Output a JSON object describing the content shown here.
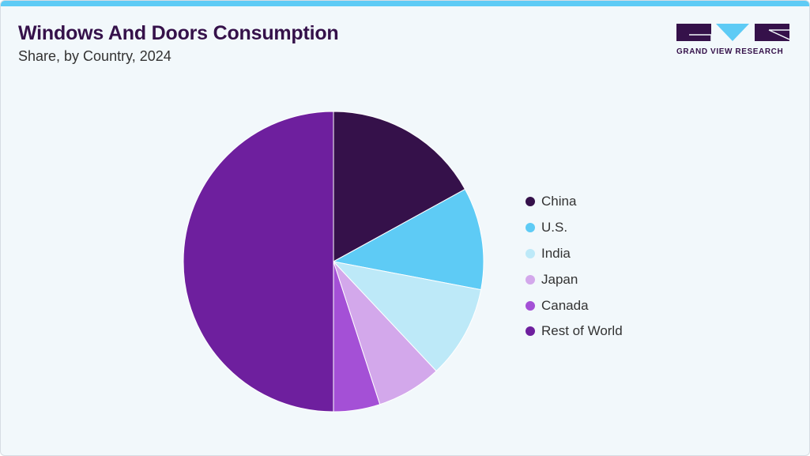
{
  "header": {
    "title": "Windows And Doors Consumption",
    "subtitle": "Share, by Country, 2024"
  },
  "logo": {
    "text": "GRAND VIEW RESEARCH",
    "colors": {
      "dark": "#35114a",
      "accent": "#5ecbf5"
    }
  },
  "chart_data": {
    "type": "pie",
    "title": "Windows And Doors Consumption",
    "subtitle": "Share, by Country, 2024",
    "legend_position": "right",
    "start_angle": "12 o'clock, clockwise",
    "slices": [
      {
        "label": "China",
        "value": 17.0,
        "color": "#35114a"
      },
      {
        "label": "U.S.",
        "value": 11.0,
        "color": "#5ecbf5"
      },
      {
        "label": "India",
        "value": 10.0,
        "color": "#bde9f8"
      },
      {
        "label": "Japan",
        "value": 7.0,
        "color": "#d3a8eb"
      },
      {
        "label": "Canada",
        "value": 5.0,
        "color": "#a450d6"
      },
      {
        "label": "Rest of World",
        "value": 50.0,
        "color": "#6e1f9e"
      }
    ]
  }
}
